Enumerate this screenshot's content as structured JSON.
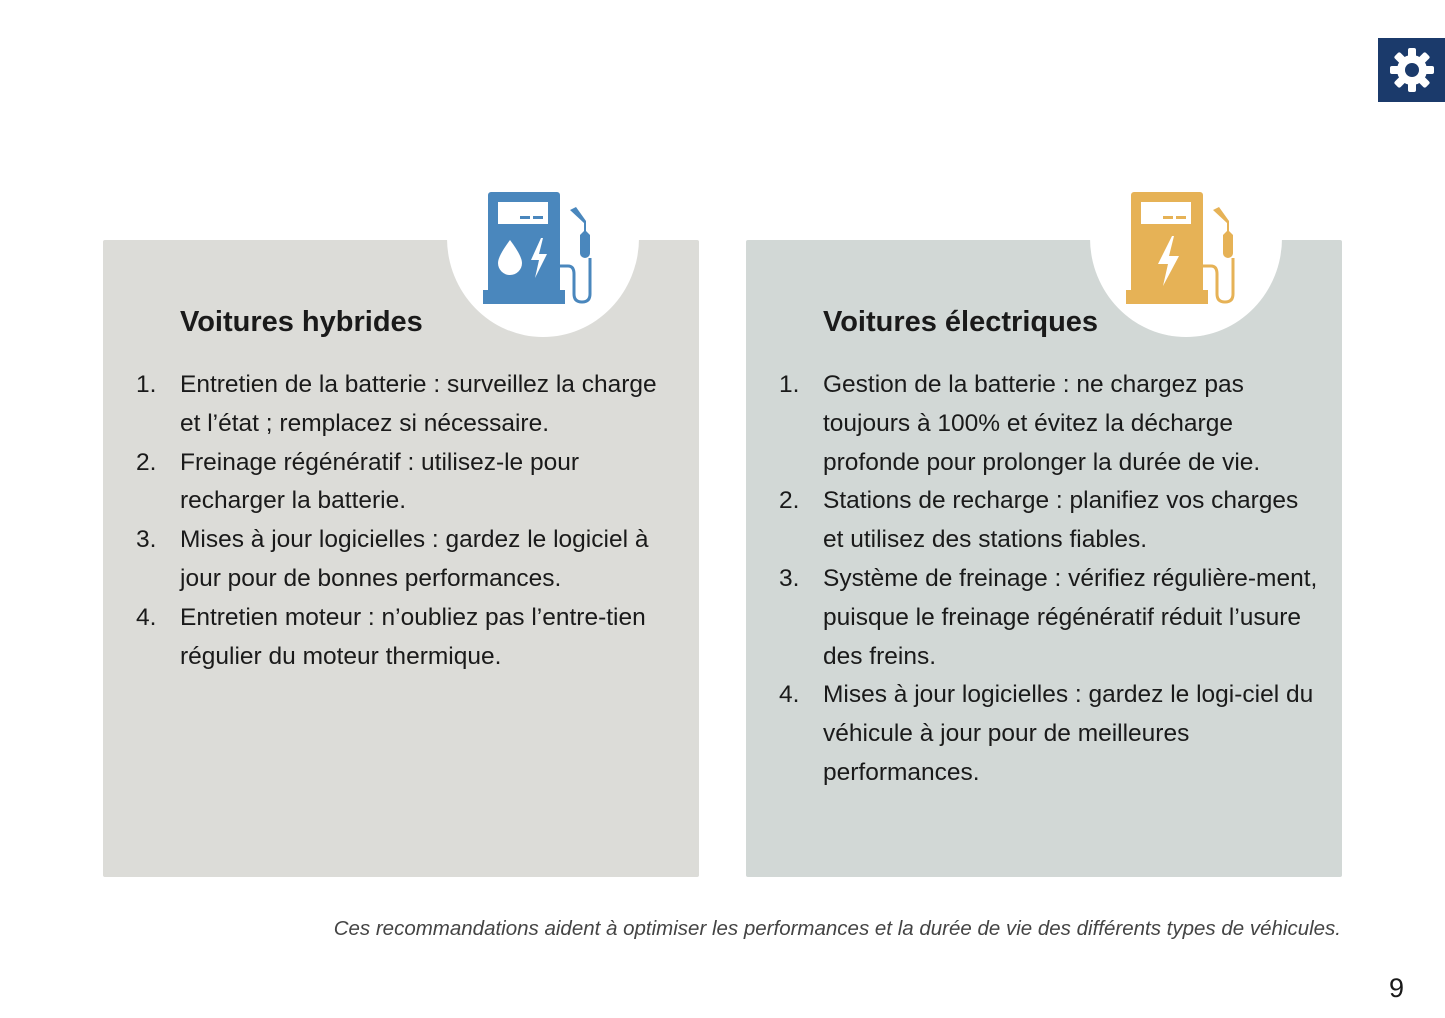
{
  "colors": {
    "gear_bg": "#1b3a6b",
    "hybrid_card": "#dcdcd8",
    "electric_card": "#d2d8d6",
    "hybrid_icon": "#4a87bd",
    "electric_icon": "#e6b256"
  },
  "hybrid": {
    "title": "Voitures hybrides",
    "icon": "fuel-pump-hybrid-icon",
    "items": [
      {
        "n": "1.",
        "text": "Entretien de la batterie : surveillez la charge et l’état ; remplacez si nécessaire."
      },
      {
        "n": "2.",
        "text": "Freinage régénératif : utilisez-le pour recharger la batterie."
      },
      {
        "n": "3.",
        "text": "Mises à jour logicielles : gardez le logiciel à jour pour de bonnes performances."
      },
      {
        "n": "4.",
        "text": "Entretien moteur : n’oubliez pas l’entre-tien régulier du moteur thermique."
      }
    ]
  },
  "electric": {
    "title": "Voitures électriques",
    "icon": "charging-station-icon",
    "items": [
      {
        "n": "1.",
        "text": "Gestion de la batterie : ne chargez pas toujours à 100% et évitez la décharge profonde pour prolonger la durée de vie."
      },
      {
        "n": "2.",
        "text": "Stations de recharge : planifiez vos charges et utilisez des stations fiables."
      },
      {
        "n": "3.",
        "text": "Système de freinage : vérifiez régulière-ment, puisque le freinage régénératif réduit l’usure des freins."
      },
      {
        "n": "4.",
        "text": "Mises à jour logicielles : gardez le logi-ciel du véhicule à jour pour de meilleures performances."
      }
    ]
  },
  "footer": "Ces recommandations aident à optimiser les performances et la durée de vie des différents types de véhicules.",
  "page_number": "9"
}
